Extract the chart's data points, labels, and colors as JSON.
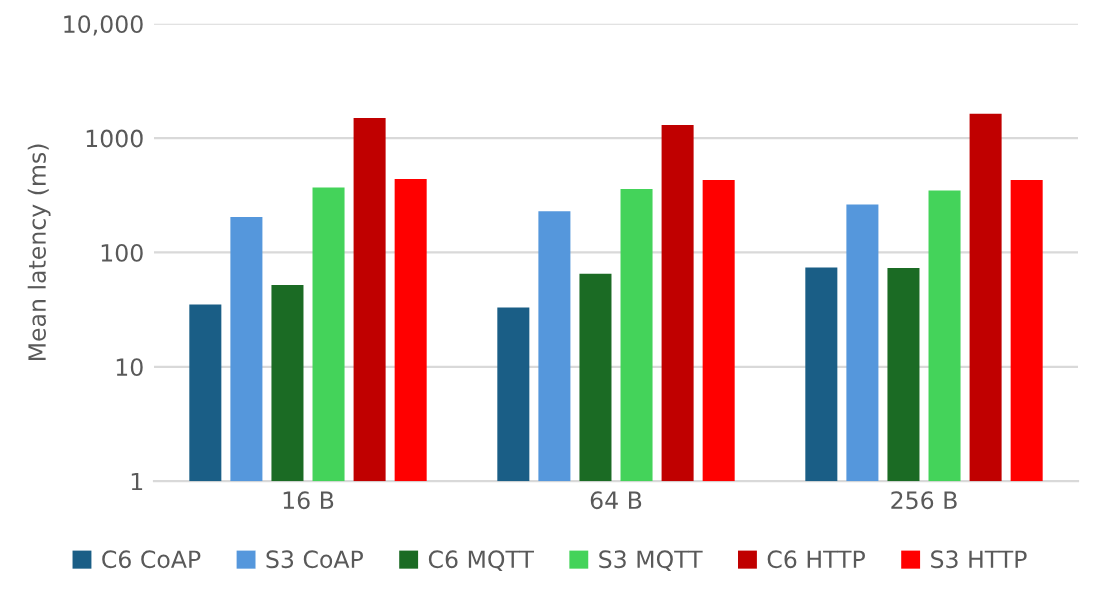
{
  "chart_data": {
    "type": "bar",
    "ylabel": "Mean latency (ms)",
    "categories": [
      "16 B",
      "64 B",
      "256 B"
    ],
    "series": [
      {
        "name": "C6 CoAP",
        "color": "#1a5e86",
        "values": [
          34,
          32,
          73
        ]
      },
      {
        "name": "S3 CoAP",
        "color": "#5597dc",
        "values": [
          203,
          228,
          262
        ]
      },
      {
        "name": "C6 MQTT",
        "color": "#1b6b24",
        "values": [
          51,
          64,
          72
        ]
      },
      {
        "name": "S3 MQTT",
        "color": "#44d35a",
        "values": [
          368,
          358,
          348
        ]
      },
      {
        "name": "C6 HTTP",
        "color": "#c00000",
        "values": [
          1497,
          1300,
          1630
        ]
      },
      {
        "name": "S3 HTTP",
        "color": "#ff0000",
        "values": [
          437,
          430,
          430
        ]
      }
    ],
    "log": true,
    "ylim": [
      1,
      10000
    ],
    "yticks": [
      1,
      10,
      100,
      1000,
      {
        "value": 10000,
        "label": "10,000"
      }
    ],
    "grid": "y",
    "legend": "bottom"
  }
}
